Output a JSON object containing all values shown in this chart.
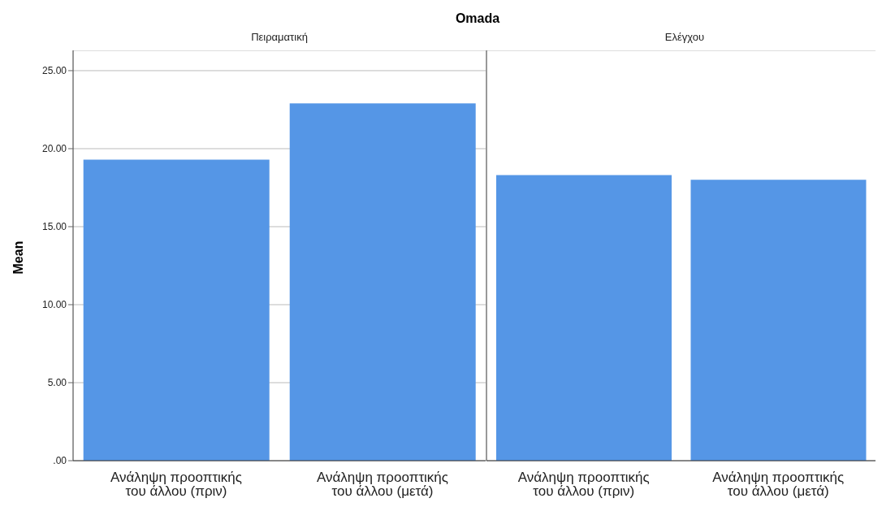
{
  "chart_data": [
    {
      "type": "bar",
      "title": "Πειραματική",
      "annotations": [
        "Omada"
      ],
      "ylabel": "Mean",
      "categories": [
        "Ανάληψη προοπτικής του άλλου (πριν)",
        "Ανάληψη προοπτικής του άλλου (μετά)"
      ],
      "values": [
        19.3,
        22.9
      ],
      "color": "#5596e6",
      "ylim": [
        0,
        26.3
      ],
      "yticks": [
        {
          "value": 0,
          "label": ".00"
        },
        {
          "value": 5,
          "label": "5.00"
        },
        {
          "value": 10,
          "label": "10.00"
        },
        {
          "value": 15,
          "label": "15.00"
        },
        {
          "value": 20,
          "label": "20.00"
        },
        {
          "value": 25,
          "label": "25.00"
        }
      ],
      "grid": "y"
    },
    {
      "type": "bar",
      "title": "Ελέγχου",
      "categories": [
        "Ανάληψη προοπτικής του άλλου (πριν)",
        "Ανάληψη προοπτικής του άλλου (μετά)"
      ],
      "values": [
        18.3,
        18.0
      ],
      "color": "#5596e6",
      "ylim": [
        0,
        26.3
      ],
      "yticks": [
        {
          "value": 0,
          "label": null
        },
        {
          "value": 5,
          "label": null
        },
        {
          "value": 10,
          "label": null
        },
        {
          "value": 15,
          "label": null
        },
        {
          "value": 20,
          "label": null
        },
        {
          "value": 25,
          "label": null
        }
      ],
      "grid": "y",
      "tick_labels": "x"
    }
  ]
}
